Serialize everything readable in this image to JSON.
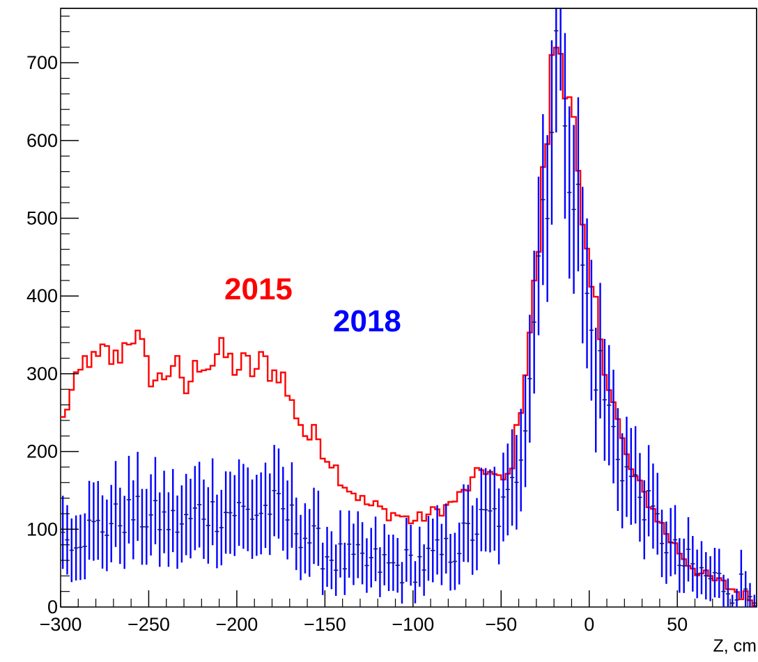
{
  "chart_data": {
    "type": "histogram",
    "xlabel": "Z, cm",
    "ylabel": "",
    "xlim": [
      -300,
      95
    ],
    "ylim": [
      0,
      770
    ],
    "x_ticks": [
      -300,
      -250,
      -200,
      -150,
      -100,
      -50,
      0,
      50
    ],
    "x_tick_labels": [
      "−300",
      "−250",
      "−200",
      "−150",
      "−100",
      "−50",
      "0",
      "50"
    ],
    "y_ticks": [
      0,
      100,
      200,
      300,
      400,
      500,
      600,
      700
    ],
    "y_tick_labels": [
      "0",
      "100",
      "200",
      "300",
      "400",
      "500",
      "600",
      "700"
    ],
    "grid": false,
    "bin_width": 2.5,
    "series": [
      {
        "name": "2015",
        "color": "#ff0000",
        "style": "step",
        "anchors": [
          [
            -300,
            230
          ],
          [
            -295,
            270
          ],
          [
            -290,
            290
          ],
          [
            -285,
            325
          ],
          [
            -280,
            310
          ],
          [
            -275,
            330
          ],
          [
            -270,
            315
          ],
          [
            -265,
            330
          ],
          [
            -260,
            355
          ],
          [
            -255,
            340
          ],
          [
            -250,
            300
          ],
          [
            -245,
            290
          ],
          [
            -240,
            300
          ],
          [
            -235,
            320
          ],
          [
            -230,
            270
          ],
          [
            -225,
            300
          ],
          [
            -220,
            320
          ],
          [
            -215,
            310
          ],
          [
            -210,
            330
          ],
          [
            -205,
            320
          ],
          [
            -200,
            305
          ],
          [
            -195,
            315
          ],
          [
            -190,
            300
          ],
          [
            -185,
            320
          ],
          [
            -180,
            300
          ],
          [
            -175,
            305
          ],
          [
            -170,
            265
          ],
          [
            -165,
            245
          ],
          [
            -160,
            215
          ],
          [
            -155,
            225
          ],
          [
            -150,
            195
          ],
          [
            -145,
            185
          ],
          [
            -140,
            160
          ],
          [
            -135,
            150
          ],
          [
            -130,
            140
          ],
          [
            -125,
            130
          ],
          [
            -120,
            130
          ],
          [
            -115,
            120
          ],
          [
            -110,
            120
          ],
          [
            -105,
            115
          ],
          [
            -100,
            110
          ],
          [
            -95,
            115
          ],
          [
            -90,
            120
          ],
          [
            -85,
            125
          ],
          [
            -80,
            130
          ],
          [
            -75,
            140
          ],
          [
            -70,
            150
          ],
          [
            -65,
            165
          ],
          [
            -60,
            180
          ],
          [
            -55,
            170
          ],
          [
            -50,
            160
          ],
          [
            -45,
            170
          ],
          [
            -40,
            240
          ],
          [
            -35,
            330
          ],
          [
            -30,
            430
          ],
          [
            -25,
            580
          ],
          [
            -20,
            720
          ],
          [
            -17.5,
            735
          ],
          [
            -15,
            700
          ],
          [
            -12.5,
            690
          ],
          [
            -10,
            650
          ],
          [
            -7.5,
            580
          ],
          [
            -5,
            500
          ],
          [
            -2.5,
            450
          ],
          [
            0,
            420
          ],
          [
            5,
            370
          ],
          [
            10,
            300
          ],
          [
            15,
            250
          ],
          [
            20,
            200
          ],
          [
            25,
            170
          ],
          [
            30,
            150
          ],
          [
            35,
            130
          ],
          [
            40,
            110
          ],
          [
            45,
            90
          ],
          [
            50,
            75
          ],
          [
            55,
            60
          ],
          [
            60,
            50
          ],
          [
            65,
            40
          ],
          [
            70,
            35
          ],
          [
            75,
            30
          ],
          [
            80,
            25
          ],
          [
            85,
            18
          ],
          [
            90,
            12
          ],
          [
            95,
            10
          ]
        ]
      },
      {
        "name": "2018",
        "color": "#0000ff",
        "style": "errorbars",
        "anchors": [
          [
            -300,
            90
          ],
          [
            -290,
            95
          ],
          [
            -280,
            100
          ],
          [
            -270,
            110
          ],
          [
            -260,
            120
          ],
          [
            -250,
            115
          ],
          [
            -240,
            110
          ],
          [
            -230,
            105
          ],
          [
            -220,
            125
          ],
          [
            -210,
            120
          ],
          [
            -200,
            125
          ],
          [
            -190,
            120
          ],
          [
            -180,
            130
          ],
          [
            -170,
            115
          ],
          [
            -160,
            90
          ],
          [
            -150,
            70
          ],
          [
            -140,
            60
          ],
          [
            -130,
            55
          ],
          [
            -120,
            55
          ],
          [
            -110,
            50
          ],
          [
            -100,
            55
          ],
          [
            -90,
            60
          ],
          [
            -80,
            70
          ],
          [
            -70,
            90
          ],
          [
            -60,
            110
          ],
          [
            -50,
            120
          ],
          [
            -45,
            140
          ],
          [
            -40,
            190
          ],
          [
            -35,
            290
          ],
          [
            -30,
            420
          ],
          [
            -25,
            560
          ],
          [
            -20,
            680
          ],
          [
            -17.5,
            740
          ],
          [
            -15,
            720
          ],
          [
            -12.5,
            670
          ],
          [
            -10,
            600
          ],
          [
            -7.5,
            520
          ],
          [
            -5,
            470
          ],
          [
            -2.5,
            410
          ],
          [
            0,
            360
          ],
          [
            5,
            310
          ],
          [
            10,
            260
          ],
          [
            15,
            210
          ],
          [
            20,
            180
          ],
          [
            25,
            160
          ],
          [
            30,
            140
          ],
          [
            35,
            120
          ],
          [
            40,
            100
          ],
          [
            45,
            80
          ],
          [
            50,
            60
          ],
          [
            60,
            45
          ],
          [
            70,
            35
          ],
          [
            80,
            28
          ],
          [
            95,
            20
          ]
        ]
      }
    ],
    "annotations": [
      {
        "text": "2015",
        "color": "#ff0000"
      },
      {
        "text": "2018",
        "color": "#0000ff"
      }
    ]
  }
}
